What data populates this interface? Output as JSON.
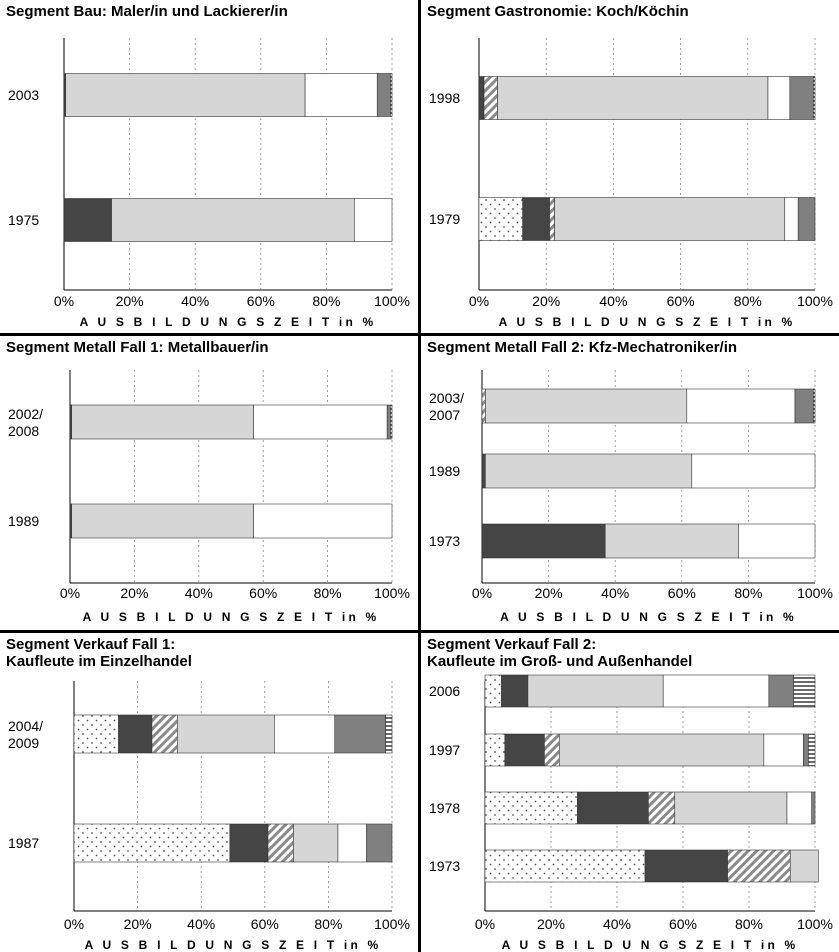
{
  "chart_data": [
    {
      "type": "bar",
      "orientation": "horizontal",
      "stacked": true,
      "title": "Segment Bau: Maler/in und Lackierer/in",
      "categories": [
        "2003",
        "1975"
      ],
      "xlabel": "A U S B I L D U N G S Z E I T in %",
      "xlim": [
        0,
        100
      ],
      "xticks": [
        "0%",
        "20%",
        "40%",
        "60%",
        "80%",
        "100%"
      ],
      "grid": "vertical dashed",
      "bars": [
        {
          "label": "2003",
          "segments": [
            {
              "value": 0.5,
              "fill": "dark"
            },
            {
              "value": 73,
              "fill": "light"
            },
            {
              "value": 22,
              "fill": "white"
            },
            {
              "value": 4,
              "fill": "medium"
            },
            {
              "value": 0.5,
              "fill": "hstripe"
            }
          ]
        },
        {
          "label": "1975",
          "segments": [
            {
              "value": 14.5,
              "fill": "dark"
            },
            {
              "value": 74,
              "fill": "light"
            },
            {
              "value": 11.5,
              "fill": "white"
            }
          ]
        }
      ]
    },
    {
      "type": "bar",
      "orientation": "horizontal",
      "stacked": true,
      "title": "Segment Gastronomie: Koch/Köchin",
      "categories": [
        "1998",
        "1979"
      ],
      "xlabel": "A U S B I L D U N G S Z E I T in %",
      "xlim": [
        0,
        100
      ],
      "xticks": [
        "0%",
        "20%",
        "40%",
        "60%",
        "80%",
        "100%"
      ],
      "grid": "vertical dashed",
      "bars": [
        {
          "label": "1998",
          "segments": [
            {
              "value": 1.5,
              "fill": "dark"
            },
            {
              "value": 4,
              "fill": "diag"
            },
            {
              "value": 80.5,
              "fill": "light"
            },
            {
              "value": 6.5,
              "fill": "white"
            },
            {
              "value": 7,
              "fill": "medium"
            },
            {
              "value": 0.5,
              "fill": "hstripe"
            }
          ]
        },
        {
          "label": "1979",
          "segments": [
            {
              "value": 13,
              "fill": "dots"
            },
            {
              "value": 8,
              "fill": "dark"
            },
            {
              "value": 1.5,
              "fill": "diag"
            },
            {
              "value": 68.5,
              "fill": "light"
            },
            {
              "value": 4,
              "fill": "white"
            },
            {
              "value": 5,
              "fill": "medium"
            }
          ]
        }
      ]
    },
    {
      "type": "bar",
      "orientation": "horizontal",
      "stacked": true,
      "title": "Segment Metall Fall 1: Metallbauer/in",
      "categories": [
        "2002/\n2008",
        "1989"
      ],
      "xlabel": "A U S B I L D U N G S Z E I T in %",
      "xlim": [
        0,
        100
      ],
      "xticks": [
        "0%",
        "20%",
        "40%",
        "60%",
        "80%",
        "100%"
      ],
      "grid": "vertical dashed",
      "bars": [
        {
          "label": "2002/\n2008",
          "segments": [
            {
              "value": 0.5,
              "fill": "dark"
            },
            {
              "value": 56.5,
              "fill": "light"
            },
            {
              "value": 41.5,
              "fill": "white"
            },
            {
              "value": 1,
              "fill": "medium"
            },
            {
              "value": 0.5,
              "fill": "hstripe"
            }
          ]
        },
        {
          "label": "1989",
          "segments": [
            {
              "value": 0.5,
              "fill": "dark"
            },
            {
              "value": 56.5,
              "fill": "light"
            },
            {
              "value": 43,
              "fill": "white"
            }
          ]
        }
      ]
    },
    {
      "type": "bar",
      "orientation": "horizontal",
      "stacked": true,
      "title": "Segment Metall Fall 2: Kfz-Mechatroniker/in",
      "categories": [
        "2003/\n2007",
        "1989",
        "1973"
      ],
      "xlabel": "A U S B I L D U N G S Z E I T in %",
      "xlim": [
        0,
        100
      ],
      "xticks": [
        "0%",
        "20%",
        "40%",
        "60%",
        "80%",
        "100%"
      ],
      "grid": "vertical dashed",
      "bars": [
        {
          "label": "2003/\n2007",
          "segments": [
            {
              "value": 1,
              "fill": "diag"
            },
            {
              "value": 60.5,
              "fill": "light"
            },
            {
              "value": 32.5,
              "fill": "white"
            },
            {
              "value": 5.5,
              "fill": "medium"
            },
            {
              "value": 0.5,
              "fill": "hstripe"
            }
          ]
        },
        {
          "label": "1989",
          "segments": [
            {
              "value": 1,
              "fill": "dark"
            },
            {
              "value": 62,
              "fill": "light"
            },
            {
              "value": 37,
              "fill": "white"
            }
          ]
        },
        {
          "label": "1973",
          "segments": [
            {
              "value": 37,
              "fill": "dark"
            },
            {
              "value": 40,
              "fill": "light"
            },
            {
              "value": 23,
              "fill": "white"
            }
          ]
        }
      ]
    },
    {
      "type": "bar",
      "orientation": "horizontal",
      "stacked": true,
      "title": "Segment Verkauf Fall 1:\nKaufleute im Einzelhandel",
      "categories": [
        "2004/\n2009",
        "1987"
      ],
      "xlabel": "A U S B I L D U N G S Z E I T in %",
      "xlim": [
        0,
        100
      ],
      "xticks": [
        "0%",
        "20%",
        "40%",
        "60%",
        "80%",
        "100%"
      ],
      "grid": "vertical dashed",
      "bars": [
        {
          "label": "2004/\n2009",
          "segments": [
            {
              "value": 14,
              "fill": "dots"
            },
            {
              "value": 10.5,
              "fill": "dark"
            },
            {
              "value": 8,
              "fill": "diag"
            },
            {
              "value": 30.5,
              "fill": "light"
            },
            {
              "value": 19,
              "fill": "white"
            },
            {
              "value": 16,
              "fill": "medium"
            },
            {
              "value": 2,
              "fill": "hstripe"
            }
          ]
        },
        {
          "label": "1987",
          "segments": [
            {
              "value": 49,
              "fill": "dots"
            },
            {
              "value": 12,
              "fill": "dark"
            },
            {
              "value": 8,
              "fill": "diag"
            },
            {
              "value": 14,
              "fill": "light"
            },
            {
              "value": 9,
              "fill": "white"
            },
            {
              "value": 8,
              "fill": "medium"
            }
          ]
        }
      ]
    },
    {
      "type": "bar",
      "orientation": "horizontal",
      "stacked": true,
      "title": "Segment Verkauf Fall 2:\nKaufleute im Groß- und Außenhandel",
      "categories": [
        "2006",
        "1997",
        "1978",
        "1973"
      ],
      "xlabel": "A U S B I L D U N G S Z E I T in %",
      "xlim": [
        0,
        100
      ],
      "xticks": [
        "0%",
        "20%",
        "40%",
        "60%",
        "80%",
        "100%"
      ],
      "grid": "vertical dashed",
      "bars": [
        {
          "label": "2006",
          "segments": [
            {
              "value": 5,
              "fill": "dots"
            },
            {
              "value": 8,
              "fill": "dark"
            },
            {
              "value": 41,
              "fill": "light"
            },
            {
              "value": 32,
              "fill": "white"
            },
            {
              "value": 7.5,
              "fill": "medium"
            },
            {
              "value": 6.5,
              "fill": "hstripe"
            }
          ]
        },
        {
          "label": "1997",
          "segments": [
            {
              "value": 6,
              "fill": "dots"
            },
            {
              "value": 12,
              "fill": "dark"
            },
            {
              "value": 4.5,
              "fill": "diag"
            },
            {
              "value": 62,
              "fill": "light"
            },
            {
              "value": 12,
              "fill": "white"
            },
            {
              "value": 1.5,
              "fill": "medium"
            },
            {
              "value": 2,
              "fill": "hstripe"
            }
          ]
        },
        {
          "label": "1978",
          "segments": [
            {
              "value": 28,
              "fill": "dots"
            },
            {
              "value": 21.5,
              "fill": "dark"
            },
            {
              "value": 8,
              "fill": "diag"
            },
            {
              "value": 34,
              "fill": "light"
            },
            {
              "value": 7.5,
              "fill": "white"
            },
            {
              "value": 1,
              "fill": "medium"
            }
          ]
        },
        {
          "label": "1973",
          "segments": [
            {
              "value": 48.5,
              "fill": "dots"
            },
            {
              "value": 25,
              "fill": "dark"
            },
            {
              "value": 19,
              "fill": "diag"
            },
            {
              "value": 8.5,
              "fill": "light"
            }
          ]
        }
      ]
    }
  ],
  "fills": {
    "dark": "#454545",
    "light": "#d6d6d6",
    "white": "#ffffff",
    "medium": "#808080",
    "hstripe": "striped",
    "diag": "hatched",
    "dots": "dotted"
  }
}
